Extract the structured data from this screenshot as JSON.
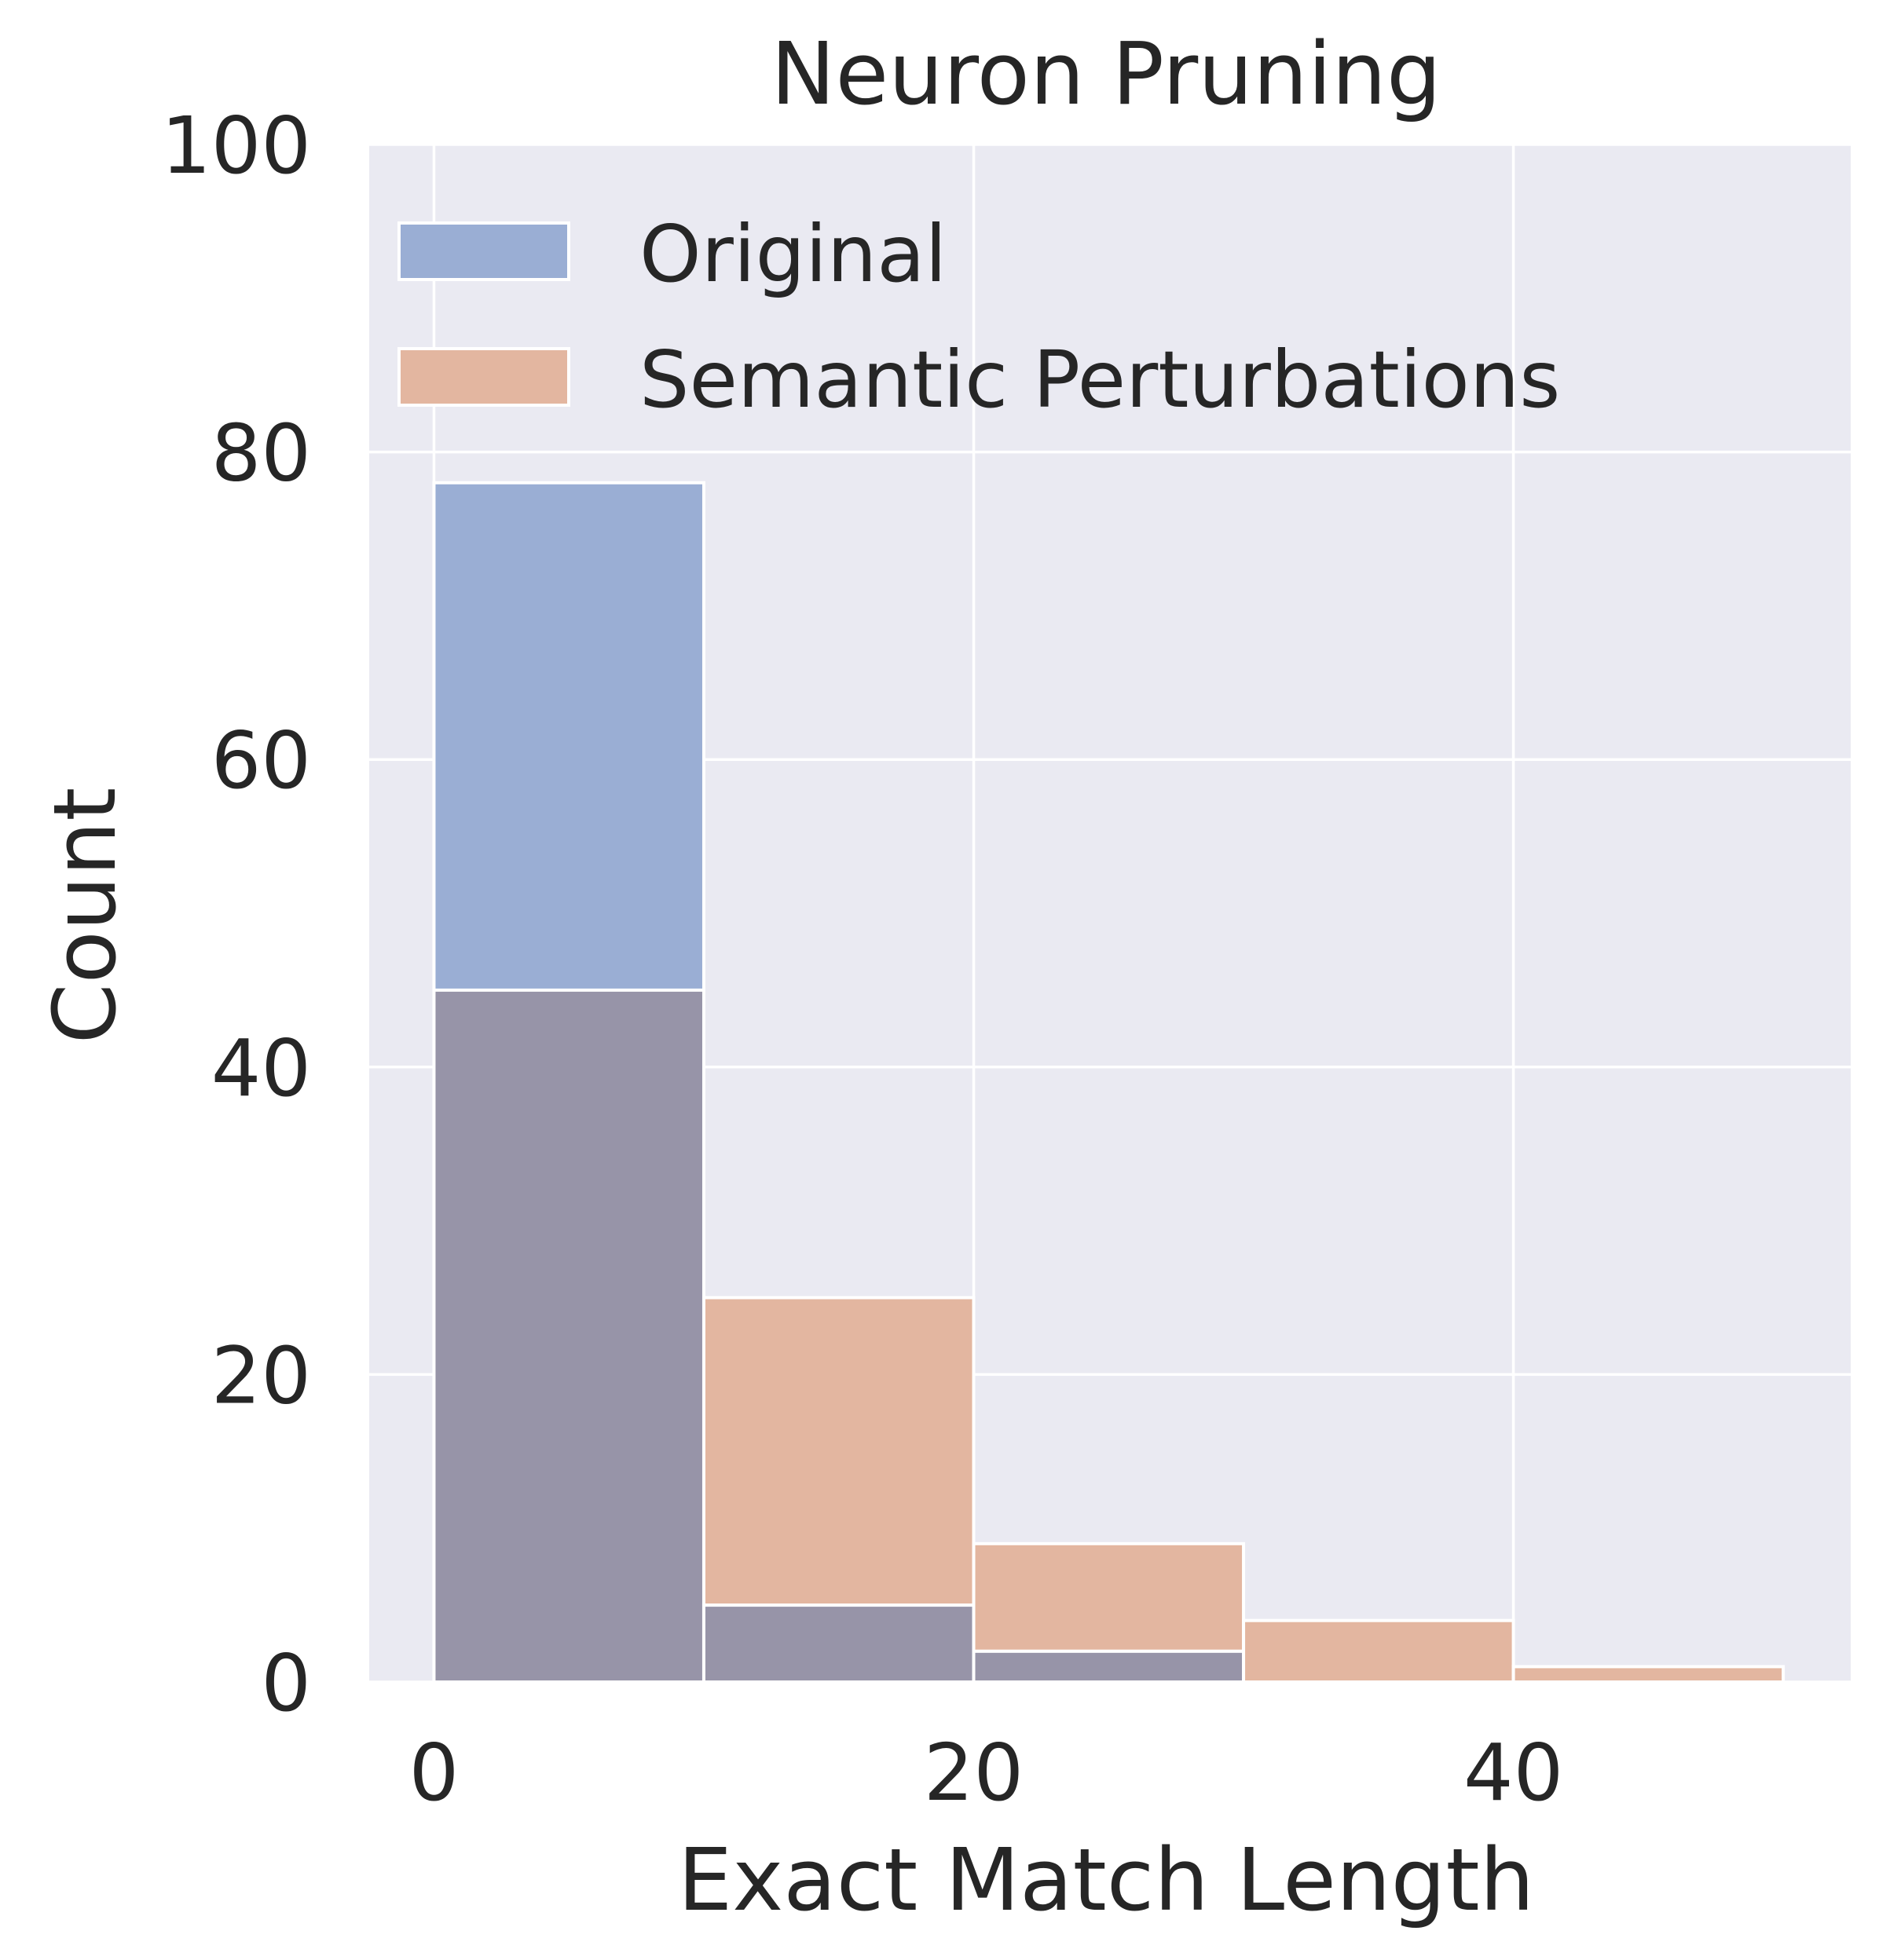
{
  "chart_data": {
    "type": "bar",
    "title": "Neuron Pruning",
    "xlabel": "Exact Match Length",
    "ylabel": "Count",
    "xlim": [
      -2.4,
      52.5
    ],
    "ylim": [
      0,
      100
    ],
    "xticks": [
      0,
      20,
      40
    ],
    "yticks": [
      0,
      20,
      40,
      60,
      80,
      100
    ],
    "bin_edges": [
      0,
      10,
      20,
      30,
      40,
      50
    ],
    "grid": true,
    "legend_position": "upper-left",
    "series": [
      {
        "name": "Original",
        "color": "#4c72b0",
        "values": [
          78,
          5,
          2,
          0,
          0
        ]
      },
      {
        "name": "Semantic Perturbations",
        "color": "#dd8452",
        "values": [
          45,
          25,
          9,
          4,
          1
        ]
      }
    ],
    "background": "#eaeaf2",
    "overlap_color": "#9794a8"
  }
}
